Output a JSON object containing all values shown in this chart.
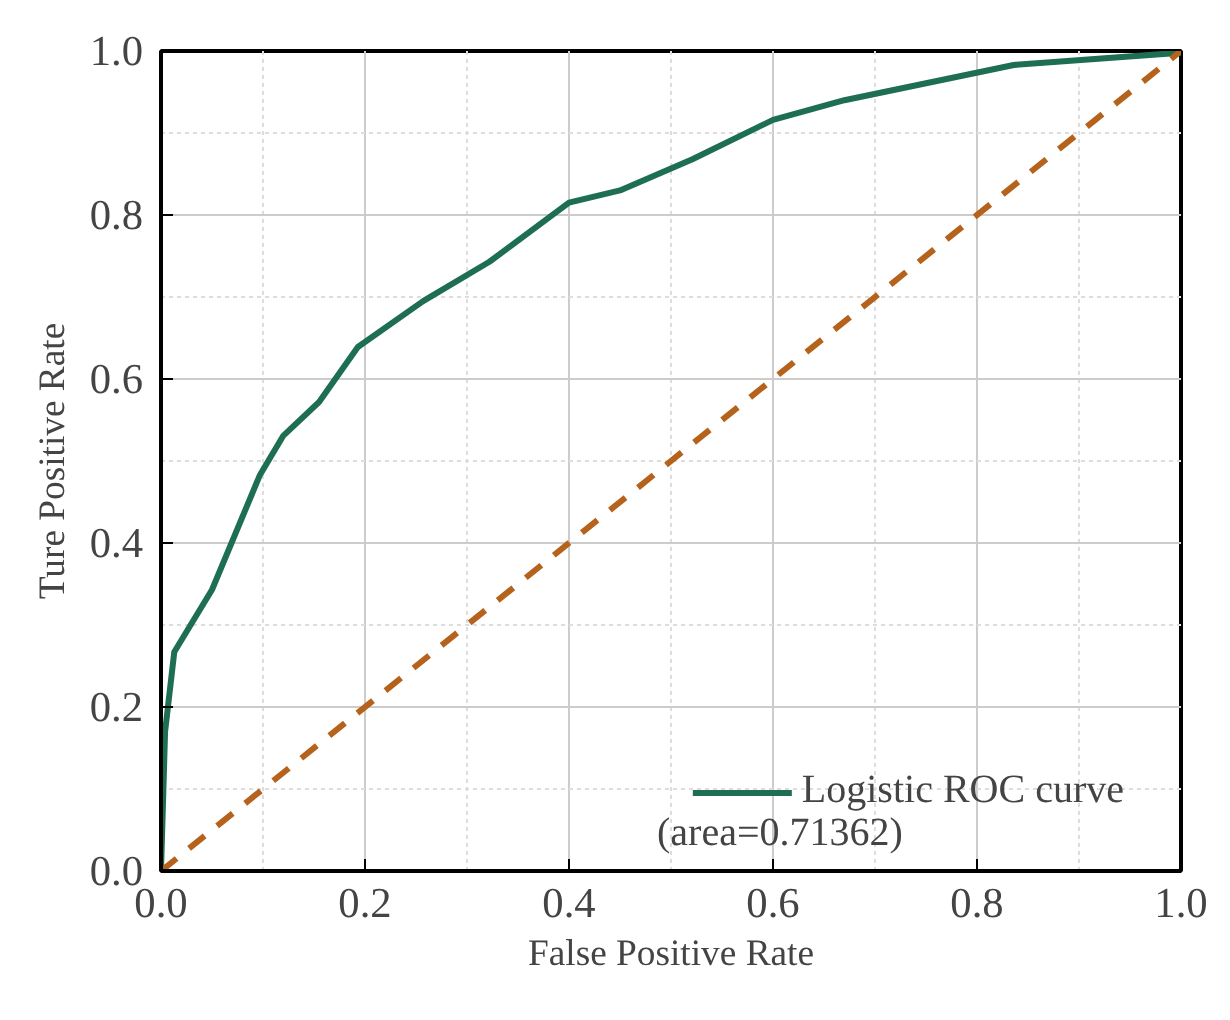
{
  "chart_data": {
    "type": "line",
    "xlabel": "False Positive Rate",
    "ylabel": "Ture Positive Rate",
    "xlim": [
      0,
      1
    ],
    "ylim": [
      0,
      1
    ],
    "xticks": [
      {
        "value": 0,
        "label": "0.0"
      },
      0.2,
      0.4,
      0.6,
      0.8,
      {
        "value": 1,
        "label": "1.0"
      }
    ],
    "yticks": [
      {
        "value": 0,
        "label": "0.0"
      },
      0.2,
      0.4,
      0.6,
      0.8,
      {
        "value": 1,
        "label": "1.0"
      }
    ],
    "grid": true,
    "legend": "bottom right",
    "marker": "none",
    "series": [
      {
        "name": "Logistic ROC curve",
        "color": "#1e6e52",
        "line_style": "solid",
        "x": [
          0,
          0.004,
          0.013,
          0.05,
          0.097,
          0.12,
          0.155,
          0.193,
          0.257,
          0.322,
          0.4,
          0.45,
          0.521,
          0.6,
          0.67,
          0.836,
          1.0
        ],
        "values": [
          0,
          0.17,
          0.267,
          0.343,
          0.483,
          0.531,
          0.572,
          0.639,
          0.695,
          0.743,
          0.815,
          0.83,
          0.868,
          0.916,
          0.94,
          0.983,
          0.998
        ]
      },
      {
        "color": "#b5631c",
        "line_style": "dashed",
        "x": [
          0,
          1
        ],
        "values": [
          0,
          1
        ]
      }
    ],
    "annotations": [
      "(area=0.71362)"
    ]
  }
}
